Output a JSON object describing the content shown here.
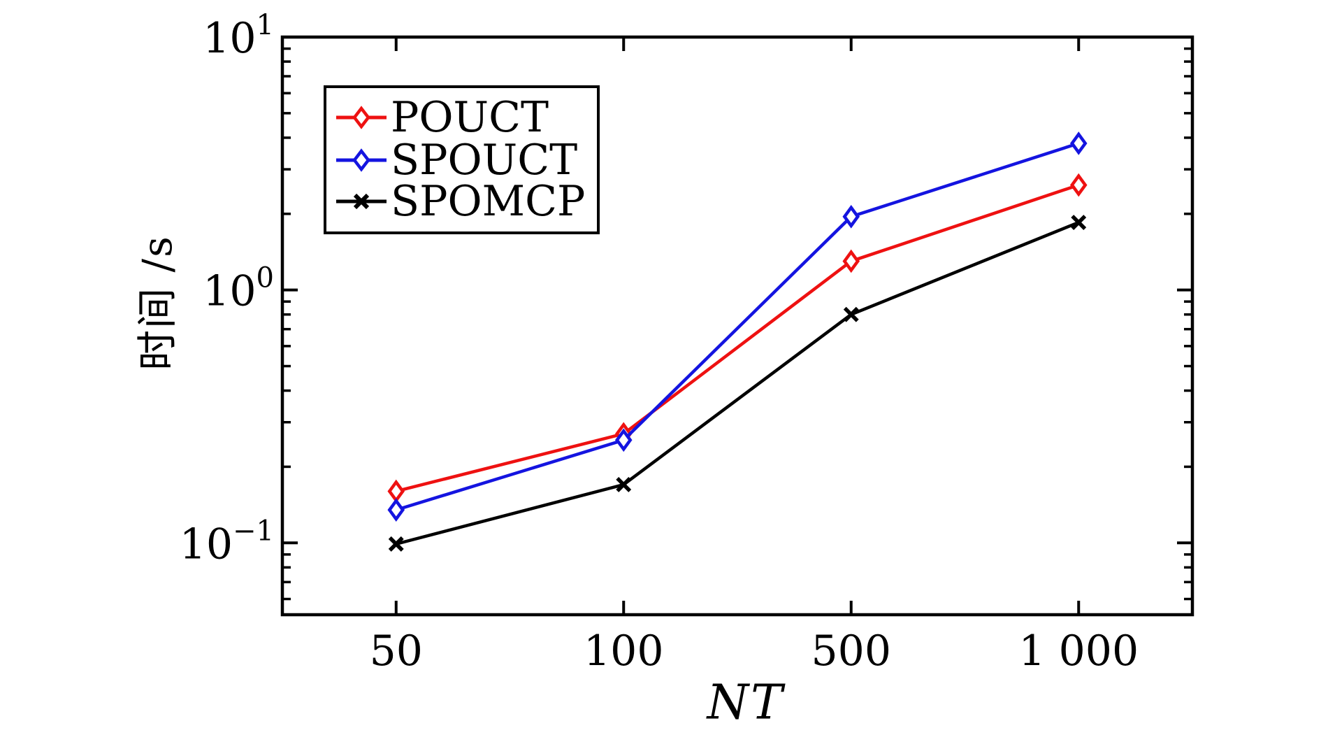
{
  "figure": {
    "background": "#ffffff",
    "axis_color": "#000000"
  },
  "chart_data": {
    "type": "line",
    "title": "",
    "xlabel": "NT",
    "ylabel": "时间 /s",
    "x_axis": {
      "categories": [
        "50",
        "100",
        "500",
        "1 000"
      ],
      "values": [
        50,
        100,
        500,
        1000
      ],
      "scale": "categorical-equal-spacing"
    },
    "y_axis": {
      "scale": "log",
      "ylim": [
        0.052,
        10
      ],
      "major_ticks": [
        {
          "value": 10,
          "base": "10",
          "exponent": "1"
        },
        {
          "value": 1,
          "base": "10",
          "exponent": "0"
        },
        {
          "value": 0.1,
          "base": "10",
          "exponent": "−1"
        }
      ],
      "minor_ticks_per_decade": [
        2,
        3,
        4,
        5,
        6,
        7,
        8,
        9
      ]
    },
    "grid": false,
    "legend_position": "upper-left-inside",
    "series": [
      {
        "name": "POUCT",
        "color": "#ee1111",
        "marker": "diamond",
        "values": [
          0.16,
          0.27,
          1.3,
          2.6
        ]
      },
      {
        "name": "SPOUCT",
        "color": "#1414e0",
        "marker": "diamond",
        "values": [
          0.135,
          0.255,
          1.95,
          3.8
        ]
      },
      {
        "name": "SPOMCP",
        "color": "#000000",
        "marker": "x",
        "values": [
          0.099,
          0.17,
          0.8,
          1.85
        ]
      }
    ]
  }
}
